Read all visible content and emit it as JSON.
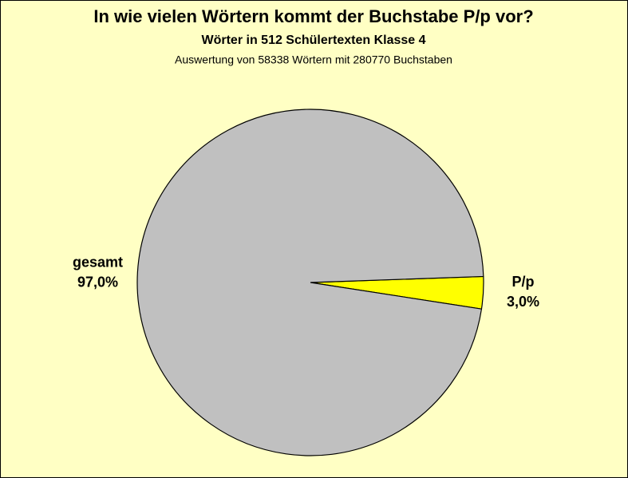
{
  "chart_data": {
    "type": "pie",
    "title": "In wie vielen Wörtern kommt der Buchstabe P/p vor?",
    "subtitles": [
      "Wörter in 512 Schülertexten Klasse 4",
      "Auswertung von 58338 Wörtern mit 280770 Buchstaben"
    ],
    "categories": [
      "P/p",
      "gesamt"
    ],
    "values": [
      3.0,
      97.0
    ],
    "value_labels": [
      "3,0%",
      "97,0%"
    ],
    "colors": [
      "#ffff00",
      "#c0c0c0"
    ]
  }
}
